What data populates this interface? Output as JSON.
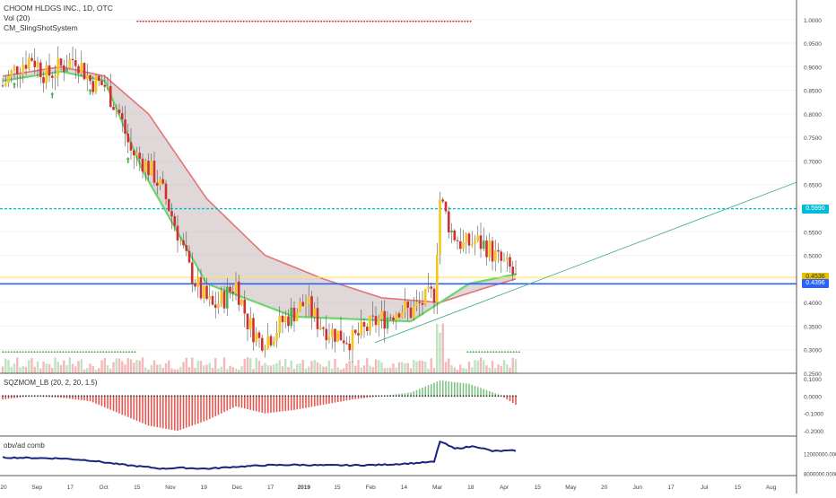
{
  "legend": {
    "symbol": "CHOOM HLDGS INC., 1D, OTC",
    "volume": "Vol (20)",
    "indicator": "CM_SlingShotSystem"
  },
  "panes": {
    "squeeze_label": "SQZMOM_LB (20, 2, 20, 1.5)",
    "obv_label": "obv/ad comb"
  },
  "price_axis": {
    "ticks": [
      "1.0000",
      "0.9500",
      "0.9000",
      "0.8500",
      "0.8000",
      "0.7500",
      "0.7000",
      "0.6500",
      "0.5500",
      "0.5000",
      "0.4500",
      "0.4000",
      "0.3500",
      "0.3000",
      "0.2500"
    ],
    "tags": [
      {
        "text": "0.5990",
        "color": "#00bcd4"
      },
      {
        "text": "0.4536",
        "color": "#e6c200"
      },
      {
        "text": "0.4396",
        "color": "#2962ff"
      }
    ]
  },
  "squeeze_axis": {
    "ticks": [
      "0.1000",
      "0.0000",
      "-0.1000",
      "-0.2000"
    ]
  },
  "obv_axis": {
    "ticks": [
      "12000000.0000",
      "8000000.0000"
    ]
  },
  "time_axis": {
    "labels": [
      "20",
      "Sep",
      "17",
      "Oct",
      "15",
      "Nov",
      "19",
      "Dec",
      "17",
      "2019",
      "15",
      "Feb",
      "14",
      "Mar",
      "18",
      "Apr",
      "15",
      "May",
      "20",
      "Jun",
      "17",
      "Jul",
      "15",
      "Aug"
    ]
  },
  "colors": {
    "up": "#f7c518",
    "down": "#d32f2f",
    "up_alt": "#4caf50",
    "fast_ema": "#6bd66b",
    "slow_ema": "#e57373",
    "cloud": "#c6b8b8",
    "hline_cyan": "#00bcd4",
    "hline_blue": "#2962ff",
    "hline_yellow": "#ffe94d",
    "trend": "#4caf8f",
    "obv": "#1a237e"
  },
  "chart_data": {
    "type": "candlestick",
    "symbol": "CHOOM HLDGS INC.",
    "interval": "1D",
    "exchange": "OTC",
    "y_range_price": [
      0.25,
      1.03
    ],
    "horizontal_levels": [
      0.599,
      0.4536,
      0.4396
    ],
    "close_path": [
      [
        0,
        0.86
      ],
      [
        5,
        0.9
      ],
      [
        10,
        0.92
      ],
      [
        15,
        0.88
      ],
      [
        20,
        0.9
      ],
      [
        25,
        0.92
      ],
      [
        30,
        0.87
      ],
      [
        35,
        0.86
      ],
      [
        40,
        0.8
      ],
      [
        44,
        0.72
      ],
      [
        48,
        0.7
      ],
      [
        52,
        0.67
      ],
      [
        56,
        0.62
      ],
      [
        60,
        0.55
      ],
      [
        64,
        0.47
      ],
      [
        68,
        0.42
      ],
      [
        72,
        0.39
      ],
      [
        76,
        0.41
      ],
      [
        80,
        0.44
      ],
      [
        84,
        0.36
      ],
      [
        88,
        0.32
      ],
      [
        92,
        0.33
      ],
      [
        96,
        0.36
      ],
      [
        100,
        0.38
      ],
      [
        104,
        0.4
      ],
      [
        108,
        0.36
      ],
      [
        112,
        0.34
      ],
      [
        116,
        0.33
      ],
      [
        120,
        0.32
      ],
      [
        124,
        0.34
      ],
      [
        128,
        0.36
      ],
      [
        132,
        0.37
      ],
      [
        136,
        0.39
      ],
      [
        140,
        0.38
      ],
      [
        144,
        0.4
      ],
      [
        148,
        0.42
      ],
      [
        150,
        0.62
      ],
      [
        154,
        0.55
      ],
      [
        158,
        0.52
      ],
      [
        162,
        0.53
      ],
      [
        166,
        0.52
      ],
      [
        170,
        0.49
      ],
      [
        174,
        0.47
      ],
      [
        176,
        0.45
      ]
    ],
    "fast_ema": [
      [
        0,
        0.87
      ],
      [
        20,
        0.89
      ],
      [
        35,
        0.87
      ],
      [
        48,
        0.68
      ],
      [
        70,
        0.44
      ],
      [
        100,
        0.37
      ],
      [
        140,
        0.36
      ],
      [
        160,
        0.44
      ],
      [
        176,
        0.46
      ]
    ],
    "slow_ema": [
      [
        0,
        0.88
      ],
      [
        20,
        0.9
      ],
      [
        35,
        0.88
      ],
      [
        50,
        0.8
      ],
      [
        70,
        0.62
      ],
      [
        90,
        0.5
      ],
      [
        110,
        0.45
      ],
      [
        130,
        0.41
      ],
      [
        150,
        0.4
      ],
      [
        165,
        0.43
      ],
      [
        176,
        0.45
      ]
    ],
    "squeeze_momentum": [
      [
        0,
        -0.02
      ],
      [
        10,
        0.0
      ],
      [
        20,
        -0.01
      ],
      [
        30,
        -0.03
      ],
      [
        40,
        -0.1
      ],
      [
        50,
        -0.17
      ],
      [
        60,
        -0.2
      ],
      [
        70,
        -0.14
      ],
      [
        80,
        -0.06
      ],
      [
        90,
        -0.1
      ],
      [
        100,
        -0.08
      ],
      [
        110,
        -0.05
      ],
      [
        120,
        -0.02
      ],
      [
        130,
        0.0
      ],
      [
        140,
        0.02
      ],
      [
        150,
        0.09
      ],
      [
        160,
        0.07
      ],
      [
        170,
        0.01
      ],
      [
        176,
        -0.05
      ]
    ],
    "obv": [
      [
        0,
        11.2
      ],
      [
        20,
        11.0
      ],
      [
        30,
        10.6
      ],
      [
        40,
        9.8
      ],
      [
        50,
        9.2
      ],
      [
        55,
        8.9
      ],
      [
        60,
        9.1
      ],
      [
        70,
        8.9
      ],
      [
        80,
        9.3
      ],
      [
        90,
        9.6
      ],
      [
        100,
        9.7
      ],
      [
        110,
        9.6
      ],
      [
        120,
        9.6
      ],
      [
        130,
        9.7
      ],
      [
        140,
        10.0
      ],
      [
        148,
        10.3
      ],
      [
        150,
        14.5
      ],
      [
        155,
        13.0
      ],
      [
        162,
        13.5
      ],
      [
        168,
        12.5
      ],
      [
        176,
        12.6
      ]
    ]
  }
}
